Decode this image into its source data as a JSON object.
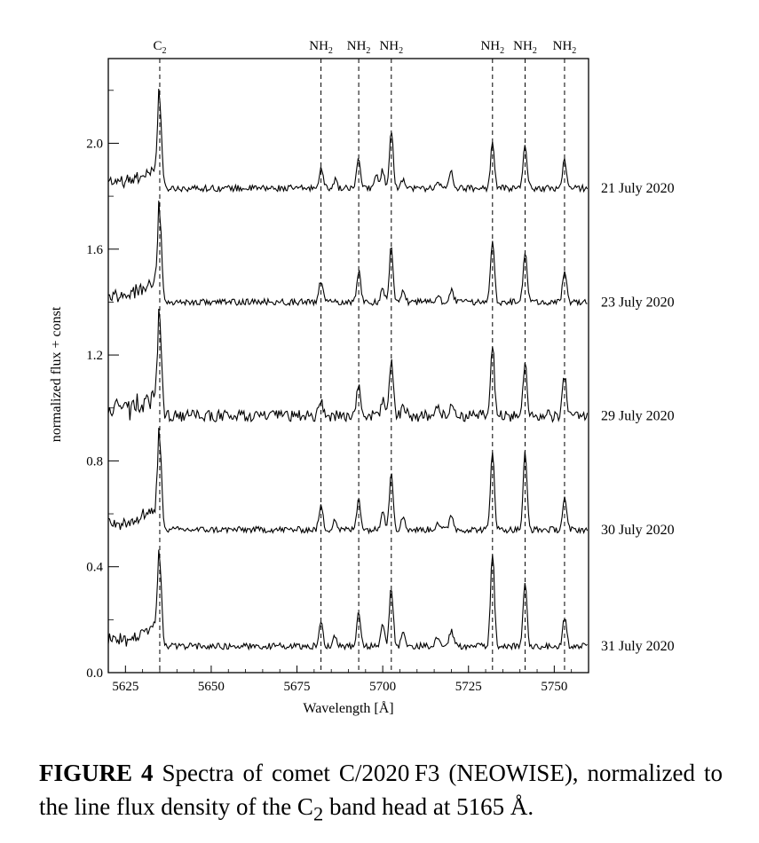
{
  "chart_data": {
    "type": "line",
    "xlabel": "Wavelength [Å]",
    "ylabel": "normalized flux + const",
    "xlim": [
      5620,
      5760
    ],
    "ylim": [
      0.0,
      2.32
    ],
    "xticks": [
      5625,
      5650,
      5675,
      5700,
      5725,
      5750
    ],
    "yticks": [
      0.0,
      0.4,
      0.8,
      1.2,
      1.6,
      2.0
    ],
    "ytick_labels": [
      "0.0",
      "0.4",
      "0.8",
      "1.2",
      "1.6",
      "2.0"
    ],
    "grid": false,
    "line_markers": [
      {
        "label": "C",
        "sub": "2",
        "x": 5635
      },
      {
        "label": "NH",
        "sub": "2",
        "x": 5682
      },
      {
        "label": "NH",
        "sub": "2",
        "x": 5693
      },
      {
        "label": "NH",
        "sub": "2",
        "x": 5702.5
      },
      {
        "label": "NH",
        "sub": "2",
        "x": 5732
      },
      {
        "label": "NH",
        "sub": "2",
        "x": 5741.5
      },
      {
        "label": "NH",
        "sub": "2",
        "x": 5753
      }
    ],
    "series": [
      {
        "name": "21 July 2020",
        "baseline": 1.83,
        "c2_peak": 2.16,
        "noise": 0.012,
        "peaks": [
          [
            5682,
            0.08
          ],
          [
            5686,
            0.03
          ],
          [
            5693,
            0.11
          ],
          [
            5698,
            0.05
          ],
          [
            5700,
            0.07
          ],
          [
            5702.5,
            0.22
          ],
          [
            5706,
            0.04
          ],
          [
            5716,
            0.03
          ],
          [
            5720,
            0.06
          ],
          [
            5732,
            0.17
          ],
          [
            5741.5,
            0.17
          ],
          [
            5753,
            0.11
          ]
        ]
      },
      {
        "name": "23 July 2020",
        "baseline": 1.4,
        "c2_peak": 1.73,
        "noise": 0.012,
        "peaks": [
          [
            5682,
            0.08
          ],
          [
            5693,
            0.12
          ],
          [
            5700,
            0.05
          ],
          [
            5702.5,
            0.21
          ],
          [
            5706,
            0.04
          ],
          [
            5716,
            0.03
          ],
          [
            5720,
            0.05
          ],
          [
            5732,
            0.24
          ],
          [
            5741.5,
            0.19
          ],
          [
            5753,
            0.12
          ]
        ]
      },
      {
        "name": "29 July 2020",
        "baseline": 0.97,
        "c2_peak": 1.32,
        "noise": 0.022,
        "peaks": [
          [
            5682,
            0.06
          ],
          [
            5693,
            0.12
          ],
          [
            5700,
            0.06
          ],
          [
            5702.5,
            0.22
          ],
          [
            5706,
            0.05
          ],
          [
            5716,
            0.04
          ],
          [
            5720,
            0.05
          ],
          [
            5732,
            0.27
          ],
          [
            5741.5,
            0.21
          ],
          [
            5753,
            0.15
          ]
        ]
      },
      {
        "name": "30 July 2020",
        "baseline": 0.54,
        "c2_peak": 0.87,
        "noise": 0.012,
        "peaks": [
          [
            5682,
            0.09
          ],
          [
            5686,
            0.04
          ],
          [
            5693,
            0.12
          ],
          [
            5700,
            0.08
          ],
          [
            5702.5,
            0.22
          ],
          [
            5706,
            0.05
          ],
          [
            5716,
            0.03
          ],
          [
            5720,
            0.06
          ],
          [
            5732,
            0.3
          ],
          [
            5741.5,
            0.29
          ],
          [
            5753,
            0.12
          ]
        ]
      },
      {
        "name": "31 July 2020",
        "baseline": 0.1,
        "c2_peak": 0.42,
        "noise": 0.012,
        "peaks": [
          [
            5682,
            0.09
          ],
          [
            5686,
            0.04
          ],
          [
            5693,
            0.12
          ],
          [
            5700,
            0.08
          ],
          [
            5702.5,
            0.22
          ],
          [
            5706,
            0.05
          ],
          [
            5716,
            0.03
          ],
          [
            5720,
            0.06
          ],
          [
            5732,
            0.35
          ],
          [
            5741.5,
            0.24
          ],
          [
            5753,
            0.11
          ]
        ]
      }
    ]
  },
  "caption": {
    "label": "FIGURE 4",
    "text_before": "Spectra of comet C/2020 F3 (NEOWISE), normalized to the line flux density of the C",
    "sub": "2",
    "text_after": " band head at 5165 Å."
  }
}
